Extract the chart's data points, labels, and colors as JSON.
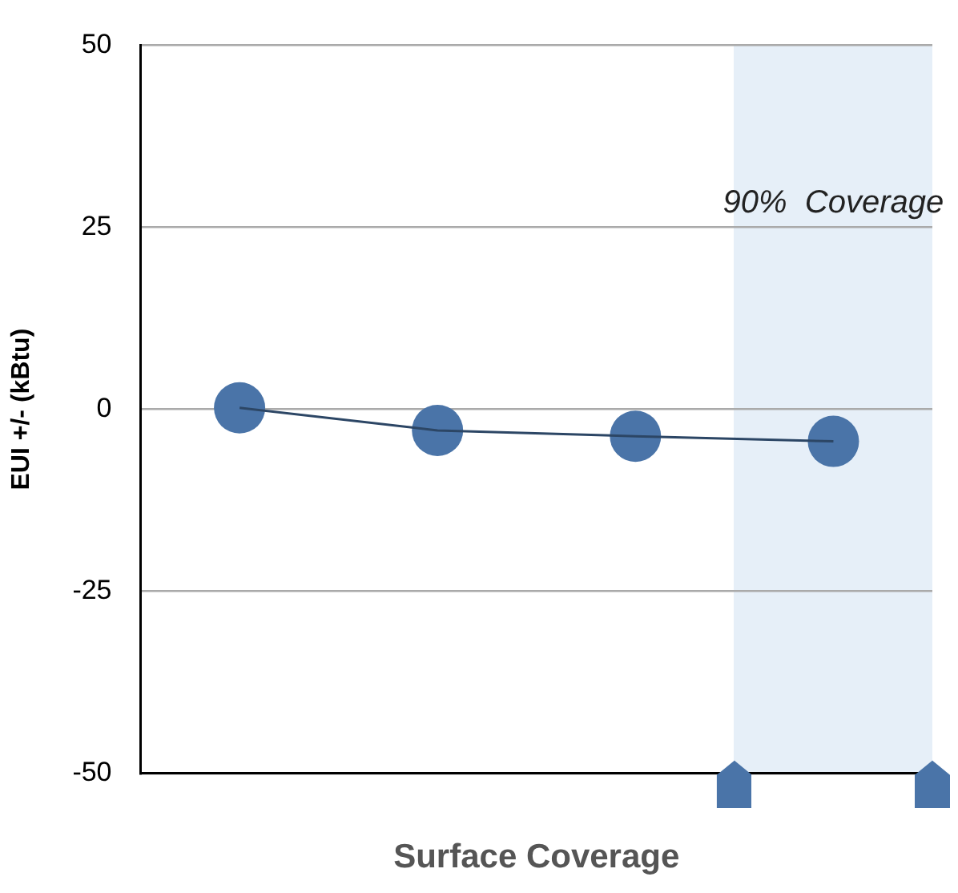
{
  "chart_data": {
    "type": "line",
    "xlabel": "Surface Coverage",
    "ylabel": "EUI +/- (kBtu)",
    "categories": [
      null,
      null,
      null,
      null
    ],
    "series": [
      {
        "color": "#4a74a8",
        "values": [
          0.2,
          -2.9,
          -3.7,
          -4.4
        ]
      }
    ],
    "ylim": [
      -50,
      50
    ],
    "yticks": [
      -50,
      -25,
      0,
      25,
      50
    ],
    "annotations": [
      "90%  Coverage"
    ],
    "grid": "y",
    "legend": false,
    "marker": "circle",
    "line_style": "solid"
  }
}
